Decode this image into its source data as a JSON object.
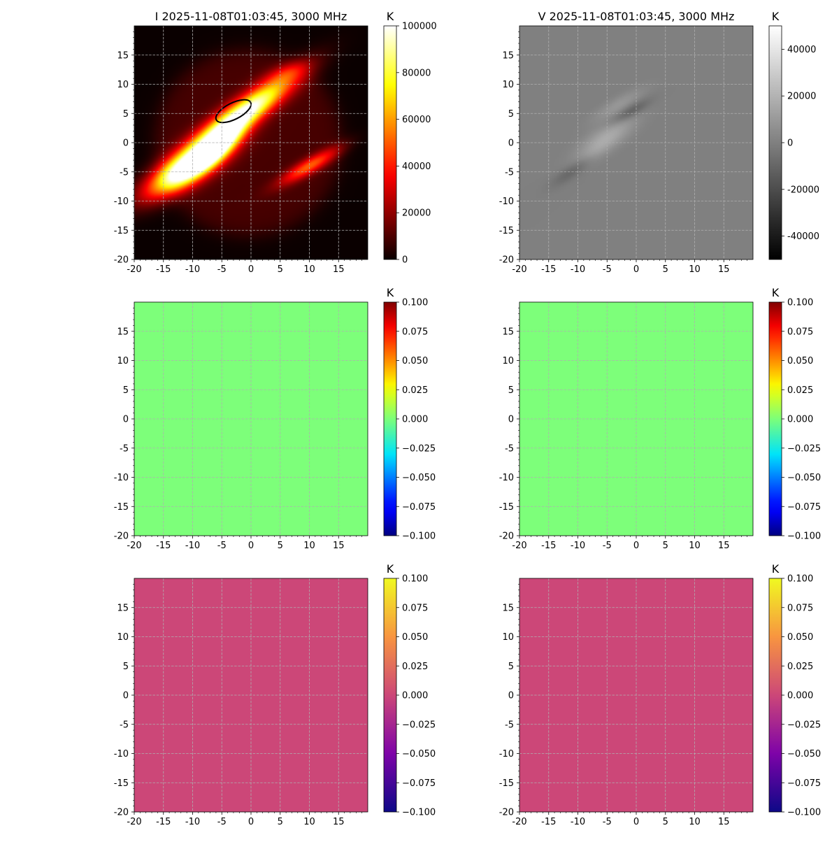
{
  "chart_data": [
    {
      "type": "heatmap",
      "title": "I 2025-11-08T01:03:45, 3000 MHz",
      "colormap": "hot",
      "colorbar_label": "K",
      "colorbar_range": [
        0,
        100000
      ],
      "colorbar_ticks": [
        "0",
        "20000",
        "40000",
        "60000",
        "80000",
        "100000"
      ],
      "xlim": [
        -20,
        20
      ],
      "ylim": [
        -20,
        20
      ],
      "xticks": [
        "-20",
        "-15",
        "-10",
        "-5",
        "0",
        "5",
        "10",
        "15"
      ],
      "yticks": [
        "-20",
        "-15",
        "-10",
        "-5",
        "0",
        "5",
        "10",
        "15"
      ],
      "grid": true,
      "features": [
        {
          "kind": "disk",
          "center": [
            -0.5,
            0
          ],
          "radius": 16,
          "value": 9000
        },
        {
          "kind": "blob",
          "center": [
            -2,
            4.5
          ],
          "sigma": [
            7.5,
            1.6
          ],
          "angle_deg": 36,
          "peak": 100000
        },
        {
          "kind": "blob",
          "center": [
            -11,
            -4.5
          ],
          "sigma": [
            5.5,
            1.8
          ],
          "angle_deg": 32,
          "peak": 100000
        },
        {
          "kind": "blob",
          "center": [
            -6,
            -1
          ],
          "sigma": [
            4,
            1.3
          ],
          "angle_deg": 40,
          "peak": 75000
        },
        {
          "kind": "blob",
          "center": [
            10,
            -4
          ],
          "sigma": [
            4,
            0.9
          ],
          "angle_deg": 30,
          "peak": 42000
        },
        {
          "kind": "blob",
          "center": [
            6,
            12
          ],
          "sigma": [
            3,
            1
          ],
          "angle_deg": 20,
          "peak": 14000
        }
      ],
      "contour": {
        "center": [
          -3,
          5.4
        ],
        "rx": 3.3,
        "ry": 1.4,
        "angle_deg": 27,
        "color": "#000000"
      }
    },
    {
      "type": "heatmap",
      "title": "V 2025-11-08T01:03:45, 3000 MHz",
      "colormap": "gray",
      "colorbar_label": "K",
      "colorbar_range": [
        -50000,
        50000
      ],
      "colorbar_ticks": [
        "-40000",
        "-20000",
        "0",
        "20000",
        "40000"
      ],
      "colorbar_tick_values": [
        -40000,
        -20000,
        0,
        20000,
        40000
      ],
      "xlim": [
        -20,
        20
      ],
      "ylim": [
        -20,
        20
      ],
      "xticks": [
        "-20",
        "-15",
        "-10",
        "-5",
        "0",
        "5",
        "10",
        "15"
      ],
      "yticks": [
        "-20",
        "-15",
        "-10",
        "-5",
        "0",
        "5",
        "10",
        "15"
      ],
      "grid": true,
      "features": [
        {
          "kind": "blob",
          "center": [
            -5,
            1
          ],
          "sigma": [
            4,
            1.4
          ],
          "angle_deg": 34,
          "peak": 16000
        },
        {
          "kind": "blob",
          "center": [
            -3,
            6.5
          ],
          "sigma": [
            3.5,
            0.9
          ],
          "angle_deg": 30,
          "peak": 9000
        },
        {
          "kind": "blob",
          "center": [
            -1,
            5.3
          ],
          "sigma": [
            2.5,
            0.7
          ],
          "angle_deg": 30,
          "peak": -14000
        },
        {
          "kind": "blob",
          "center": [
            -10.5,
            -4.5
          ],
          "sigma": [
            3,
            0.8
          ],
          "angle_deg": 35,
          "peak": -13000
        },
        {
          "kind": "blob",
          "center": [
            -8,
            -2.5
          ],
          "sigma": [
            3,
            0.9
          ],
          "angle_deg": 35,
          "peak": 8000
        }
      ]
    },
    {
      "type": "heatmap",
      "title": "",
      "colormap": "jet",
      "colorbar_label": "K",
      "colorbar_range": [
        -0.1,
        0.1
      ],
      "colorbar_ticks": [
        "−0.100",
        "−0.075",
        "−0.050",
        "−0.025",
        "0.000",
        "0.025",
        "0.050",
        "0.075",
        "0.100"
      ],
      "xlim": [
        -20,
        20
      ],
      "ylim": [
        -20,
        20
      ],
      "xticks": [
        "-20",
        "-15",
        "-10",
        "-5",
        "0",
        "5",
        "10",
        "15"
      ],
      "yticks": [
        "-20",
        "-15",
        "-10",
        "-5",
        "0",
        "5",
        "10",
        "15"
      ],
      "grid": true,
      "uniform_value": 0,
      "fill_color": "#7dff7a"
    },
    {
      "type": "heatmap",
      "title": "",
      "colormap": "jet",
      "colorbar_label": "K",
      "colorbar_range": [
        -0.1,
        0.1
      ],
      "colorbar_ticks": [
        "−0.100",
        "−0.075",
        "−0.050",
        "−0.025",
        "0.000",
        "0.025",
        "0.050",
        "0.075",
        "0.100"
      ],
      "xlim": [
        -20,
        20
      ],
      "ylim": [
        -20,
        20
      ],
      "xticks": [
        "-20",
        "-15",
        "-10",
        "-5",
        "0",
        "5",
        "10",
        "15"
      ],
      "yticks": [
        "-20",
        "-15",
        "-10",
        "-5",
        "0",
        "5",
        "10",
        "15"
      ],
      "grid": true,
      "uniform_value": 0,
      "fill_color": "#7dff7a"
    },
    {
      "type": "heatmap",
      "title": "",
      "colormap": "plasma",
      "colorbar_label": "K",
      "colorbar_range": [
        -0.1,
        0.1
      ],
      "colorbar_ticks": [
        "−0.100",
        "−0.075",
        "−0.050",
        "−0.025",
        "0.000",
        "0.025",
        "0.050",
        "0.075",
        "0.100"
      ],
      "xlim": [
        -20,
        20
      ],
      "ylim": [
        -20,
        20
      ],
      "xticks": [
        "-20",
        "-15",
        "-10",
        "-5",
        "0",
        "5",
        "10",
        "15"
      ],
      "yticks": [
        "-20",
        "-15",
        "-10",
        "-5",
        "0",
        "5",
        "10",
        "15"
      ],
      "grid": true,
      "uniform_value": 0,
      "fill_color": "#cc4778"
    },
    {
      "type": "heatmap",
      "title": "",
      "colormap": "plasma",
      "colorbar_label": "K",
      "colorbar_range": [
        -0.1,
        0.1
      ],
      "colorbar_ticks": [
        "−0.100",
        "−0.075",
        "−0.050",
        "−0.025",
        "0.000",
        "0.025",
        "0.050",
        "0.075",
        "0.100"
      ],
      "xlim": [
        -20,
        20
      ],
      "ylim": [
        -20,
        20
      ],
      "xticks": [
        "-20",
        "-15",
        "-10",
        "-5",
        "0",
        "5",
        "10",
        "15"
      ],
      "yticks": [
        "-20",
        "-15",
        "-10",
        "-5",
        "0",
        "5",
        "10",
        "15"
      ],
      "grid": true,
      "uniform_value": 0,
      "fill_color": "#cc4778"
    }
  ]
}
